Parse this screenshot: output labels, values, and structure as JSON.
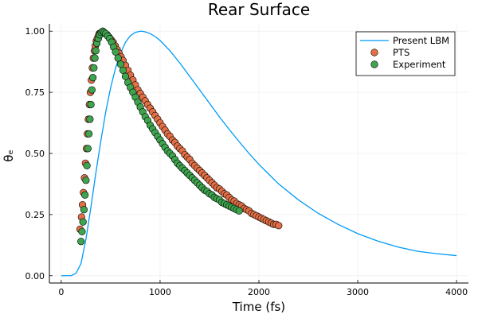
{
  "chart_data": {
    "type": "line",
    "title": "Rear Surface",
    "xlabel": "Time (fs)",
    "ylabel": "θₑ",
    "xlim": [
      -120,
      4120
    ],
    "ylim": [
      -0.03,
      1.03
    ],
    "x_ticks": [
      0,
      1000,
      2000,
      3000,
      4000
    ],
    "x_tick_labels": [
      "0",
      "1000",
      "2000",
      "3000",
      "4000"
    ],
    "y_ticks": [
      0,
      0.25,
      0.5,
      0.75,
      1.0
    ],
    "y_tick_labels": [
      "0.00",
      "0.25",
      "0.50",
      "0.75",
      "1.00"
    ],
    "grid": true,
    "legend_position": "top-right",
    "series": [
      {
        "name": "Present LBM",
        "kind": "line",
        "color": "#009af9",
        "x": [
          0,
          100,
          150,
          200,
          250,
          300,
          350,
          400,
          450,
          500,
          550,
          600,
          650,
          700,
          750,
          800,
          830,
          850,
          900,
          950,
          1000,
          1100,
          1200,
          1300,
          1400,
          1500,
          1600,
          1700,
          1800,
          1900,
          2000,
          2100,
          2200,
          2400,
          2600,
          2800,
          3000,
          3200,
          3400,
          3600,
          3800,
          4000
        ],
        "y": [
          0,
          0,
          0.01,
          0.05,
          0.15,
          0.28,
          0.42,
          0.55,
          0.67,
          0.77,
          0.85,
          0.91,
          0.955,
          0.982,
          0.995,
          1.0,
          0.999,
          0.997,
          0.99,
          0.978,
          0.962,
          0.92,
          0.87,
          0.815,
          0.76,
          0.705,
          0.65,
          0.598,
          0.548,
          0.5,
          0.455,
          0.415,
          0.375,
          0.31,
          0.255,
          0.21,
          0.172,
          0.142,
          0.118,
          0.1,
          0.09,
          0.082
        ]
      },
      {
        "name": "PTS",
        "kind": "scatter",
        "color": "#e26f46",
        "x": [
          190,
          205,
          215,
          225,
          235,
          245,
          255,
          265,
          275,
          285,
          295,
          305,
          315,
          325,
          335,
          345,
          355,
          365,
          375,
          385,
          395,
          410,
          425,
          445,
          465,
          485,
          505,
          525,
          545,
          565,
          585,
          605,
          625,
          650,
          675,
          700,
          725,
          750,
          775,
          800,
          825,
          850,
          875,
          900,
          925,
          950,
          975,
          1000,
          1025,
          1050,
          1075,
          1100,
          1125,
          1150,
          1175,
          1200,
          1225,
          1250,
          1275,
          1300,
          1325,
          1350,
          1375,
          1400,
          1425,
          1450,
          1475,
          1500,
          1525,
          1550,
          1575,
          1600,
          1625,
          1650,
          1675,
          1700,
          1725,
          1750,
          1775,
          1800,
          1825,
          1850,
          1875,
          1900,
          1925,
          1950,
          1975,
          2000,
          2025,
          2050,
          2075,
          2100,
          2125,
          2150,
          2175,
          2200
        ],
        "y": [
          0.19,
          0.24,
          0.29,
          0.34,
          0.4,
          0.46,
          0.52,
          0.58,
          0.64,
          0.7,
          0.75,
          0.8,
          0.85,
          0.89,
          0.92,
          0.94,
          0.96,
          0.97,
          0.98,
          0.99,
          0.992,
          0.995,
          0.995,
          0.99,
          0.985,
          0.975,
          0.965,
          0.955,
          0.94,
          0.925,
          0.91,
          0.895,
          0.88,
          0.86,
          0.84,
          0.82,
          0.8,
          0.78,
          0.76,
          0.745,
          0.73,
          0.715,
          0.7,
          0.685,
          0.67,
          0.655,
          0.64,
          0.625,
          0.61,
          0.595,
          0.58,
          0.57,
          0.555,
          0.545,
          0.53,
          0.52,
          0.51,
          0.495,
          0.485,
          0.475,
          0.46,
          0.45,
          0.44,
          0.43,
          0.42,
          0.41,
          0.4,
          0.39,
          0.38,
          0.37,
          0.36,
          0.355,
          0.345,
          0.335,
          0.33,
          0.32,
          0.31,
          0.305,
          0.295,
          0.29,
          0.285,
          0.275,
          0.27,
          0.265,
          0.255,
          0.25,
          0.245,
          0.24,
          0.235,
          0.23,
          0.225,
          0.22,
          0.215,
          0.21,
          0.21,
          0.205
        ]
      },
      {
        "name": "Experiment",
        "kind": "scatter",
        "color": "#3ea44e",
        "x": [
          200,
          210,
          220,
          230,
          240,
          250,
          260,
          270,
          280,
          290,
          300,
          310,
          320,
          330,
          340,
          350,
          360,
          375,
          390,
          405,
          420,
          435,
          450,
          470,
          490,
          510,
          530,
          550,
          575,
          600,
          625,
          650,
          675,
          700,
          725,
          750,
          775,
          800,
          825,
          850,
          875,
          900,
          925,
          950,
          975,
          1000,
          1025,
          1050,
          1075,
          1100,
          1125,
          1150,
          1175,
          1200,
          1225,
          1250,
          1275,
          1300,
          1325,
          1350,
          1375,
          1400,
          1425,
          1450,
          1475,
          1500,
          1525,
          1550,
          1575,
          1600,
          1625,
          1650,
          1675,
          1700,
          1725,
          1750,
          1775,
          1800
        ],
        "y": [
          0.14,
          0.18,
          0.22,
          0.27,
          0.33,
          0.39,
          0.45,
          0.52,
          0.58,
          0.64,
          0.7,
          0.76,
          0.81,
          0.85,
          0.89,
          0.92,
          0.95,
          0.97,
          0.985,
          0.995,
          1.0,
          0.995,
          0.99,
          0.98,
          0.97,
          0.955,
          0.935,
          0.915,
          0.89,
          0.865,
          0.84,
          0.815,
          0.79,
          0.77,
          0.75,
          0.73,
          0.71,
          0.69,
          0.67,
          0.65,
          0.635,
          0.615,
          0.6,
          0.585,
          0.57,
          0.555,
          0.54,
          0.525,
          0.51,
          0.5,
          0.49,
          0.475,
          0.46,
          0.45,
          0.44,
          0.43,
          0.42,
          0.41,
          0.4,
          0.39,
          0.38,
          0.37,
          0.36,
          0.35,
          0.345,
          0.335,
          0.33,
          0.32,
          0.315,
          0.31,
          0.3,
          0.295,
          0.29,
          0.285,
          0.28,
          0.275,
          0.27,
          0.265
        ]
      }
    ]
  }
}
